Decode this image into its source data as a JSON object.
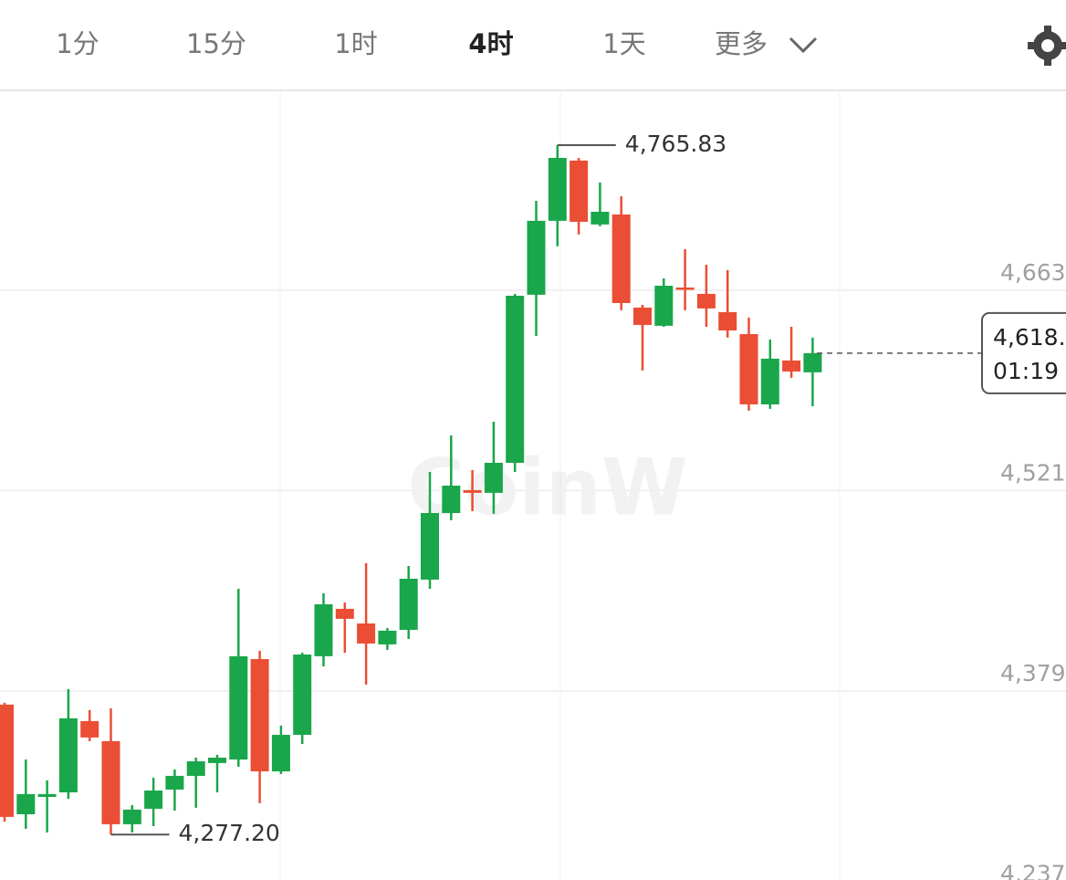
{
  "tabs": {
    "items": [
      "1分",
      "15分",
      "1时",
      "4时",
      "1天",
      "更多"
    ],
    "active": 3
  },
  "chart_data": {
    "type": "candlestick",
    "watermark": "CoinW",
    "up_color": "#1aa64a",
    "down_color": "#ea4e34",
    "open": [
      4369.3,
      4291.6,
      4303.9,
      4307.1,
      4357.6,
      4343.4,
      4284.5,
      4295.5,
      4309.1,
      4318.8,
      4327.9,
      4330.4,
      4401.6,
      4322.0,
      4347.9,
      4403.6,
      4437.2,
      4426.8,
      4412.0,
      4422.3,
      4457.9,
      4505.1,
      4521.3,
      4519.4,
      4540.7,
      4659.8,
      4712.2,
      4754.9,
      4709.6,
      4716.7,
      4650.7,
      4637.8,
      4664.9,
      4660.4,
      4647.5,
      4631.9,
      4582.1,
      4613.2,
      4604.8
    ],
    "high": [
      4370.6,
      4330.4,
      4315.6,
      4380.3,
      4365.4,
      4366.7,
      4298.1,
      4317.5,
      4323.3,
      4331.7,
      4333.7,
      4451.4,
      4407.4,
      4354.4,
      4406.1,
      4448.2,
      4441.7,
      4469.5,
      4423.6,
      4467.6,
      4534.2,
      4560.1,
      4535.5,
      4569.8,
      4660.4,
      4726.4,
      4765.83,
      4756.8,
      4739.3,
      4729.6,
      4652.6,
      4671.4,
      4692.1,
      4681.1,
      4677.2,
      4643.6,
      4628.1,
      4637.1,
      4629.4
    ],
    "low": [
      4286.4,
      4281.3,
      4278.7,
      4302.6,
      4343.4,
      4277.2,
      4278.7,
      4283.2,
      4294.2,
      4296.2,
      4307.1,
      4325.3,
      4299.4,
      4320.1,
      4341.4,
      4396.4,
      4406.1,
      4383.5,
      4408.1,
      4415.8,
      4451.4,
      4500.0,
      4506.4,
      4504.5,
      4534.2,
      4630.6,
      4694.1,
      4702.5,
      4708.3,
      4648.8,
      4606.1,
      4637.1,
      4648.8,
      4637.1,
      4629.4,
      4577.6,
      4578.9,
      4600.9,
      4580.8
    ],
    "close": [
      4289.7,
      4305.9,
      4305.9,
      4359.6,
      4346.0,
      4284.5,
      4294.9,
      4308.4,
      4318.8,
      4329.1,
      4331.7,
      4403.6,
      4322.0,
      4347.9,
      4404.8,
      4440.4,
      4430.1,
      4412.6,
      4421.7,
      4458.5,
      4505.1,
      4524.5,
      4519.4,
      4540.7,
      4659.1,
      4712.2,
      4756.8,
      4711.5,
      4718.6,
      4653.9,
      4638.4,
      4666.2,
      4663.6,
      4650.1,
      4634.5,
      4582.1,
      4614.5,
      4605.4,
      4618.4
    ],
    "annotations": [
      {
        "value": 4765.83,
        "label": "4,765.83",
        "index": 26
      },
      {
        "value": 4277.2,
        "label": "4,277.20",
        "index": 5
      }
    ],
    "last_price": {
      "value": 4618.4,
      "label": "4,618.",
      "countdown": "01:19"
    },
    "ylim": [
      4245,
      4804
    ],
    "yticks": [
      {
        "value": 4663,
        "label": "4,663"
      },
      {
        "value": 4521,
        "label": "4,521"
      },
      {
        "value": 4379,
        "label": "4,379"
      },
      {
        "value": 4237,
        "label": "4,237"
      }
    ],
    "grid": true
  }
}
